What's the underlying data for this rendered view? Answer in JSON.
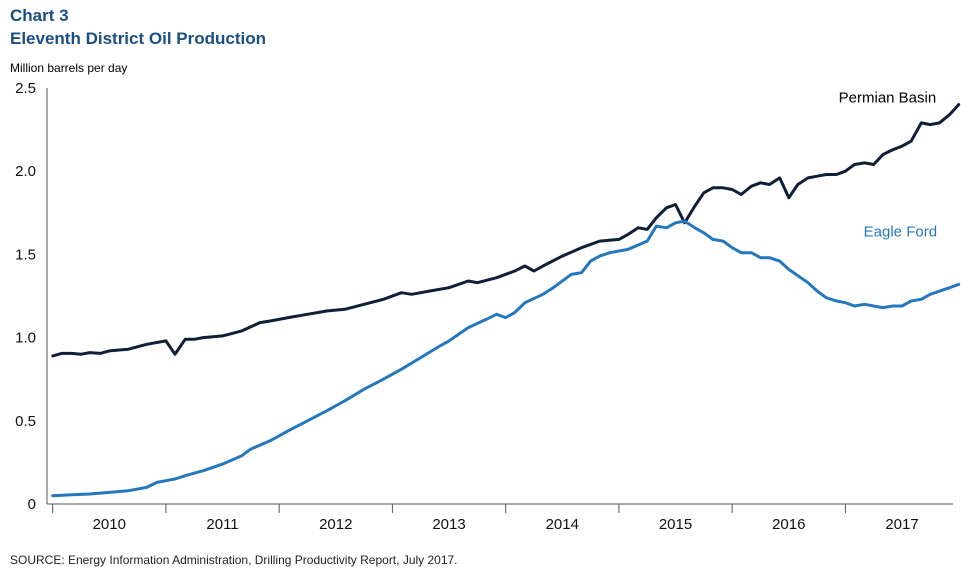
{
  "header": {
    "chart_number": "Chart 3",
    "title": "Eleventh District Oil Production",
    "unit_label": "Million barrels per day"
  },
  "footer": {
    "source": "SOURCE: Energy Information Administration, Drilling Productivity Report, July 2017."
  },
  "colors": {
    "permian": "#0f1f38",
    "eagle_ford": "#2477bd",
    "title": "#1a4f86"
  },
  "chart_data": {
    "type": "line",
    "title": "Eleventh District Oil Production",
    "ylabel": "Million barrels per day",
    "xlabel": "",
    "ylim": [
      0,
      2.5
    ],
    "xlim": [
      2009.45,
      2017.45
    ],
    "y_ticks": [
      "0",
      "0.5",
      "1.0",
      "1.5",
      "2.0",
      "2.5"
    ],
    "y_tick_values": [
      0,
      0.5,
      1.0,
      1.5,
      2.0,
      2.5
    ],
    "x_tick_labels": [
      "2010",
      "2011",
      "2012",
      "2013",
      "2014",
      "2015",
      "2016",
      "2017"
    ],
    "x_label_positions": [
      2010,
      2011,
      2012,
      2013,
      2014,
      2015,
      2016,
      2017
    ],
    "x_year_boundaries": [
      2009.5,
      2010.5,
      2011.5,
      2012.5,
      2013.5,
      2014.5,
      2015.5,
      2016.5,
      2017.5
    ],
    "grid": false,
    "series": [
      {
        "name": "Permian Basin",
        "color": "#0f1f38",
        "points": [
          [
            2009.5,
            0.89
          ],
          [
            2009.58,
            0.905
          ],
          [
            2009.67,
            0.905
          ],
          [
            2009.75,
            0.9
          ],
          [
            2009.83,
            0.91
          ],
          [
            2009.92,
            0.905
          ],
          [
            2010.0,
            0.92
          ],
          [
            2010.17,
            0.93
          ],
          [
            2010.33,
            0.96
          ],
          [
            2010.5,
            0.98
          ],
          [
            2010.58,
            0.9
          ],
          [
            2010.67,
            0.99
          ],
          [
            2010.75,
            0.99
          ],
          [
            2010.83,
            1.0
          ],
          [
            2011.0,
            1.01
          ],
          [
            2011.17,
            1.04
          ],
          [
            2011.33,
            1.09
          ],
          [
            2011.42,
            1.1
          ],
          [
            2011.58,
            1.12
          ],
          [
            2011.75,
            1.14
          ],
          [
            2011.92,
            1.16
          ],
          [
            2012.08,
            1.17
          ],
          [
            2012.25,
            1.2
          ],
          [
            2012.42,
            1.23
          ],
          [
            2012.58,
            1.27
          ],
          [
            2012.67,
            1.26
          ],
          [
            2012.75,
            1.27
          ],
          [
            2012.83,
            1.28
          ],
          [
            2013.0,
            1.3
          ],
          [
            2013.17,
            1.34
          ],
          [
            2013.25,
            1.33
          ],
          [
            2013.42,
            1.36
          ],
          [
            2013.58,
            1.4
          ],
          [
            2013.67,
            1.43
          ],
          [
            2013.75,
            1.4
          ],
          [
            2013.83,
            1.43
          ],
          [
            2014.0,
            1.49
          ],
          [
            2014.17,
            1.54
          ],
          [
            2014.33,
            1.58
          ],
          [
            2014.5,
            1.59
          ],
          [
            2014.58,
            1.62
          ],
          [
            2014.67,
            1.66
          ],
          [
            2014.75,
            1.65
          ],
          [
            2014.83,
            1.72
          ],
          [
            2014.92,
            1.78
          ],
          [
            2015.0,
            1.8
          ],
          [
            2015.08,
            1.69
          ],
          [
            2015.17,
            1.79
          ],
          [
            2015.25,
            1.87
          ],
          [
            2015.33,
            1.9
          ],
          [
            2015.42,
            1.9
          ],
          [
            2015.5,
            1.89
          ],
          [
            2015.58,
            1.86
          ],
          [
            2015.67,
            1.91
          ],
          [
            2015.75,
            1.93
          ],
          [
            2015.83,
            1.92
          ],
          [
            2015.92,
            1.96
          ],
          [
            2016.0,
            1.84
          ],
          [
            2016.08,
            1.92
          ],
          [
            2016.17,
            1.96
          ],
          [
            2016.25,
            1.97
          ],
          [
            2016.33,
            1.98
          ],
          [
            2016.42,
            1.98
          ],
          [
            2016.5,
            2.0
          ],
          [
            2016.58,
            2.04
          ],
          [
            2016.67,
            2.05
          ],
          [
            2016.75,
            2.04
          ],
          [
            2016.83,
            2.1
          ],
          [
            2016.92,
            2.13
          ],
          [
            2017.0,
            2.15
          ],
          [
            2017.08,
            2.18
          ],
          [
            2017.17,
            2.29
          ],
          [
            2017.25,
            2.28
          ],
          [
            2017.33,
            2.29
          ],
          [
            2017.42,
            2.34
          ],
          [
            2017.5,
            2.4
          ]
        ]
      },
      {
        "name": "Eagle Ford",
        "color": "#2477bd",
        "points": [
          [
            2009.5,
            0.05
          ],
          [
            2009.67,
            0.055
          ],
          [
            2009.83,
            0.06
          ],
          [
            2010.0,
            0.07
          ],
          [
            2010.17,
            0.08
          ],
          [
            2010.33,
            0.1
          ],
          [
            2010.42,
            0.13
          ],
          [
            2010.5,
            0.14
          ],
          [
            2010.58,
            0.15
          ],
          [
            2010.67,
            0.17
          ],
          [
            2010.83,
            0.2
          ],
          [
            2011.0,
            0.24
          ],
          [
            2011.17,
            0.29
          ],
          [
            2011.25,
            0.33
          ],
          [
            2011.42,
            0.38
          ],
          [
            2011.58,
            0.44
          ],
          [
            2011.75,
            0.5
          ],
          [
            2011.92,
            0.56
          ],
          [
            2012.08,
            0.62
          ],
          [
            2012.25,
            0.69
          ],
          [
            2012.42,
            0.75
          ],
          [
            2012.58,
            0.81
          ],
          [
            2012.75,
            0.88
          ],
          [
            2012.92,
            0.95
          ],
          [
            2013.0,
            0.98
          ],
          [
            2013.17,
            1.06
          ],
          [
            2013.33,
            1.11
          ],
          [
            2013.42,
            1.14
          ],
          [
            2013.5,
            1.12
          ],
          [
            2013.58,
            1.15
          ],
          [
            2013.67,
            1.21
          ],
          [
            2013.83,
            1.26
          ],
          [
            2013.92,
            1.3
          ],
          [
            2014.08,
            1.38
          ],
          [
            2014.17,
            1.39
          ],
          [
            2014.25,
            1.46
          ],
          [
            2014.33,
            1.49
          ],
          [
            2014.42,
            1.51
          ],
          [
            2014.58,
            1.53
          ],
          [
            2014.75,
            1.58
          ],
          [
            2014.83,
            1.67
          ],
          [
            2014.92,
            1.66
          ],
          [
            2015.0,
            1.69
          ],
          [
            2015.08,
            1.7
          ],
          [
            2015.17,
            1.66
          ],
          [
            2015.25,
            1.63
          ],
          [
            2015.33,
            1.59
          ],
          [
            2015.42,
            1.58
          ],
          [
            2015.5,
            1.54
          ],
          [
            2015.58,
            1.51
          ],
          [
            2015.67,
            1.51
          ],
          [
            2015.75,
            1.48
          ],
          [
            2015.83,
            1.48
          ],
          [
            2015.92,
            1.46
          ],
          [
            2016.0,
            1.41
          ],
          [
            2016.17,
            1.33
          ],
          [
            2016.25,
            1.28
          ],
          [
            2016.33,
            1.24
          ],
          [
            2016.42,
            1.22
          ],
          [
            2016.5,
            1.21
          ],
          [
            2016.58,
            1.19
          ],
          [
            2016.67,
            1.2
          ],
          [
            2016.75,
            1.19
          ],
          [
            2016.83,
            1.18
          ],
          [
            2016.92,
            1.19
          ],
          [
            2017.0,
            1.19
          ],
          [
            2017.08,
            1.22
          ],
          [
            2017.17,
            1.23
          ],
          [
            2017.25,
            1.26
          ],
          [
            2017.42,
            1.3
          ],
          [
            2017.5,
            1.32
          ]
        ]
      }
    ]
  }
}
